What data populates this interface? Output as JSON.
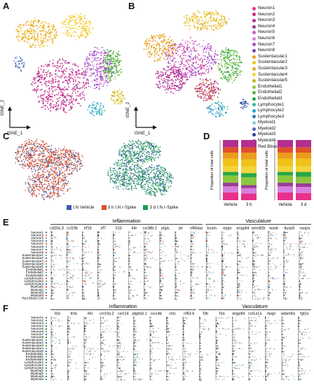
{
  "panels": {
    "a": "A",
    "b": "B",
    "c": "C",
    "d": "D",
    "e": "E",
    "f": "F"
  },
  "tsne_axes": {
    "x_label": "tSNE_1",
    "y_label": "tSNE_2"
  },
  "cluster_legend": [
    {
      "label": "Neuron1",
      "color": "#e8308a"
    },
    {
      "label": "Neuron2",
      "color": "#d2238a"
    },
    {
      "label": "Neuron3",
      "color": "#b32f8f"
    },
    {
      "label": "Neuron4",
      "color": "#9c3b97"
    },
    {
      "label": "Neuron5",
      "color": "#c45ec6"
    },
    {
      "label": "Neuron6",
      "color": "#d77fe0"
    },
    {
      "label": "Neuron7",
      "color": "#a74cc9"
    },
    {
      "label": "Neuron8",
      "color": "#7e46b8"
    },
    {
      "label": "Sustentacular1",
      "color": "#ea9c1b"
    },
    {
      "label": "Sustentacular2",
      "color": "#f0c21a"
    },
    {
      "label": "Sustentacular3",
      "color": "#e1a82a"
    },
    {
      "label": "Sustentacular4",
      "color": "#f3d43a"
    },
    {
      "label": "Sustentacular5",
      "color": "#c8b22b"
    },
    {
      "label": "Endothelial1",
      "color": "#8cc63f"
    },
    {
      "label": "Endothelial2",
      "color": "#5db545"
    },
    {
      "label": "Endothelial3",
      "color": "#28a745"
    },
    {
      "label": "Lymphocyte1",
      "color": "#2fb7a7"
    },
    {
      "label": "Lymphocyte2",
      "color": "#2a9fd0"
    },
    {
      "label": "Lymphocyte3",
      "color": "#3079c4"
    },
    {
      "label": "Myeloid1",
      "color": "#8cc8e8"
    },
    {
      "label": "Myeloid2",
      "color": "#4a63b3"
    },
    {
      "label": "Myeloid3",
      "color": "#2d3f92"
    },
    {
      "label": "Myeloid4",
      "color": "#6b4bb0"
    },
    {
      "label": "Red Blood Cell",
      "color": "#c0392b"
    }
  ],
  "condition_legend": [
    {
      "label": "I.N Vehicle",
      "color": "#3a5ba8"
    },
    {
      "label": "3 h I.N r-Spike",
      "color": "#e1502c"
    },
    {
      "label": "3 d I.N r-Spike",
      "color": "#1f9a55"
    }
  ],
  "chart_data": [
    {
      "type": "bar",
      "stacked": true,
      "ylabel": "Proportion of total cells",
      "categories": [
        "Vehicle",
        "3 h"
      ],
      "series_colors": [
        "#e8308a",
        "#d77fe0",
        "#9c3b97",
        "#8cc63f",
        "#28a745",
        "#f3d43a",
        "#f0c21a",
        "#ea9c1b",
        "#e1502c",
        "#b32f8f"
      ],
      "stack_values": [
        [
          0.13,
          0.1,
          0.06,
          0.12,
          0.06,
          0.1,
          0.12,
          0.1,
          0.09,
          0.12
        ],
        [
          0.11,
          0.09,
          0.05,
          0.13,
          0.07,
          0.11,
          0.12,
          0.11,
          0.09,
          0.12
        ]
      ]
    },
    {
      "type": "bar",
      "stacked": true,
      "ylabel": "Proportion of total cells",
      "categories": [
        "Vehicle",
        "3 d"
      ],
      "series_colors": [
        "#e8308a",
        "#d77fe0",
        "#9c3b97",
        "#8cc63f",
        "#28a745",
        "#f3d43a",
        "#f0c21a",
        "#ea9c1b",
        "#e1502c",
        "#b32f8f"
      ],
      "stack_values": [
        [
          0.13,
          0.1,
          0.06,
          0.12,
          0.06,
          0.1,
          0.12,
          0.1,
          0.09,
          0.12
        ],
        [
          0.12,
          0.1,
          0.06,
          0.11,
          0.08,
          0.1,
          0.12,
          0.1,
          0.09,
          0.12
        ]
      ]
    }
  ],
  "panel_e": {
    "sections": [
      {
        "title": "Inflammation",
        "genes": [
          "cd20a.3",
          "ccl19b",
          "irf1b",
          "irf7",
          "il15",
          "il4r",
          "cxcl8b.1",
          "ptgis",
          "pir",
          "nfkbiaa"
        ]
      },
      {
        "title": "Vasculature",
        "genes": [
          "bcam",
          "epgn",
          "angptl4",
          "amotl2b",
          "wasb",
          "dusp5",
          "vaspa"
        ]
      }
    ],
    "rows": [
      "Neuron1",
      "Neuron2",
      "Neuron3",
      "Neuron4",
      "Neuron5",
      "Neuron6",
      "Neuron7",
      "Neuron8",
      "Sustentacular1",
      "Sustentacular2",
      "Sustentacular3",
      "Sustentacular4",
      "Sustentacular5",
      "Endothelial1",
      "Endothelial2",
      "Endothelial3",
      "Lymphocyte1",
      "Lymphocyte2",
      "Lymphocyte3",
      "Myeloid1",
      "Myeloid2",
      "Myeloid3",
      "Myeloid4",
      "Red Blood Cell"
    ]
  },
  "panel_f": {
    "sections": [
      {
        "title": "Inflammation",
        "genes": [
          "il1b",
          "tnfa",
          "il6r",
          "ccl19a.2",
          "cxcl14",
          "ptgdsb.1",
          "cxcr4b",
          "ctsc",
          "nfil3-6"
        ]
      },
      {
        "title": "Vasculature",
        "genes": [
          "f3b",
          "f3a",
          "angptl4",
          "col1a1a",
          "epgn",
          "adam8a",
          "fgl2a"
        ]
      }
    ],
    "rows": [
      "Neuron1",
      "Neuron2",
      "Neuron3",
      "Neuron4",
      "Neuron5",
      "Neuron6",
      "Neuron7",
      "Neuron8",
      "Sustentacular1",
      "Sustentacular2",
      "Sustentacular3",
      "Sustentacular4",
      "Sustentacular5",
      "Endothelial1",
      "Endothelial2",
      "Endothelial3",
      "Lymphocyte1",
      "Lymphocyte2",
      "Lymphocyte3",
      "Myeloid1",
      "Myeloid2",
      "Myeloid3",
      "Myeloid4"
    ]
  }
}
